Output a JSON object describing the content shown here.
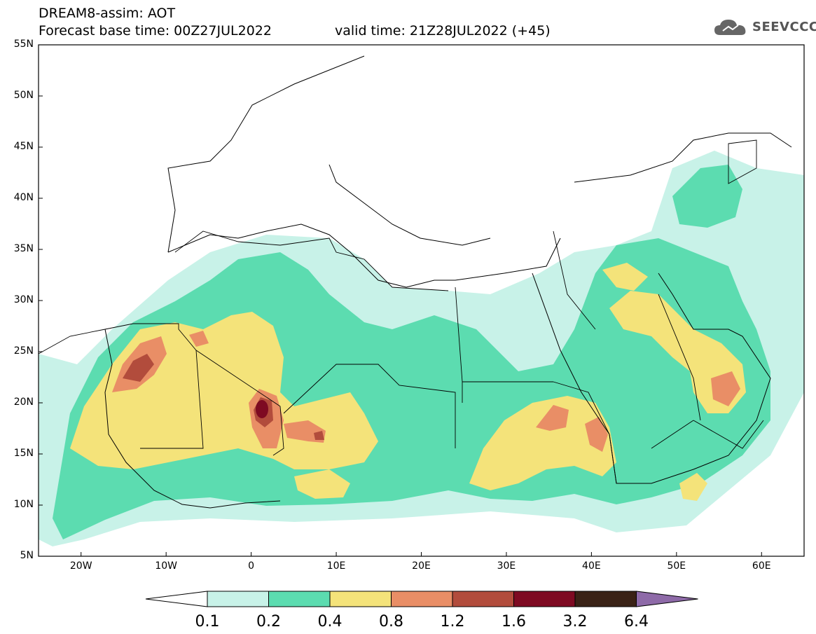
{
  "header": {
    "line1": "DREAM8-assim: AOT",
    "line2": "Forecast base time: 00Z27JUL2022",
    "valid": "valid time: 21Z28JUL2022 (+45)"
  },
  "logo": {
    "text": "SEEVCCC",
    "icon": "cloud-icon"
  },
  "map": {
    "lon_range": [
      -25,
      65
    ],
    "lat_range": [
      5,
      55
    ],
    "lat_labels": [
      "55N",
      "50N",
      "45N",
      "40N",
      "35N",
      "30N",
      "25N",
      "20N",
      "15N",
      "10N",
      "5N"
    ],
    "lon_labels": [
      "20W",
      "10W",
      "0",
      "10E",
      "20E",
      "30E",
      "40E",
      "50E",
      "60E"
    ]
  },
  "colorbar": {
    "levels": [
      "0.1",
      "0.2",
      "0.4",
      "0.8",
      "1.2",
      "1.6",
      "3.2",
      "6.4"
    ],
    "colors": [
      "#c8f2e8",
      "#5cdcb0",
      "#f4e37a",
      "#e98e66",
      "#b24c3c",
      "#7e0a22",
      "#3a2216",
      "#8e6aa8"
    ]
  }
}
